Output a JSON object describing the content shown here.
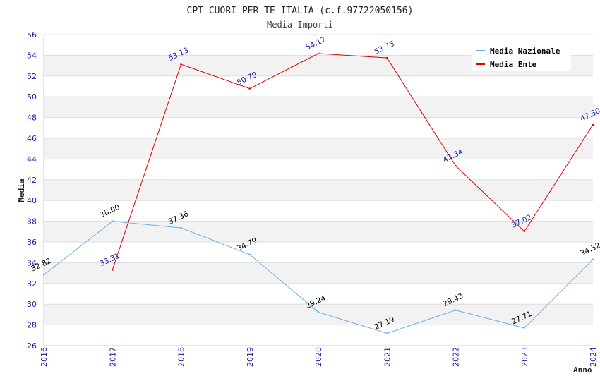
{
  "chart_data": {
    "type": "line",
    "title": "CPT CUORI PER TE ITALIA (c.f.97722050156)",
    "subtitle": "Media Importi",
    "xlabel": "Anno",
    "ylabel": "Media",
    "x": [
      "2016",
      "2017",
      "2018",
      "2019",
      "2020",
      "2021",
      "2022",
      "2023",
      "2024"
    ],
    "ylim": [
      26,
      56
    ],
    "yticks": [
      26,
      28,
      30,
      32,
      34,
      36,
      38,
      40,
      42,
      44,
      46,
      48,
      50,
      52,
      54,
      56
    ],
    "grid": true,
    "legend_position": "top-right",
    "series": [
      {
        "name": "Media Nazionale",
        "color": "#6aaee8",
        "values": [
          32.82,
          38.0,
          37.36,
          34.79,
          29.24,
          27.19,
          29.43,
          27.71,
          34.32
        ],
        "labels": [
          "32.82",
          "38.00",
          "37.36",
          "34.79",
          "29.24",
          "27.19",
          "29.43",
          "27.71",
          "34.32"
        ]
      },
      {
        "name": "Media Ente",
        "color": "#dd0000",
        "values": [
          null,
          33.31,
          53.13,
          50.79,
          54.17,
          53.75,
          43.34,
          37.02,
          47.3
        ],
        "labels": [
          "",
          "33.31",
          "53.13",
          "50.79",
          "54.17",
          "53.75",
          "43.34",
          "37.02",
          "47.30"
        ]
      }
    ]
  }
}
